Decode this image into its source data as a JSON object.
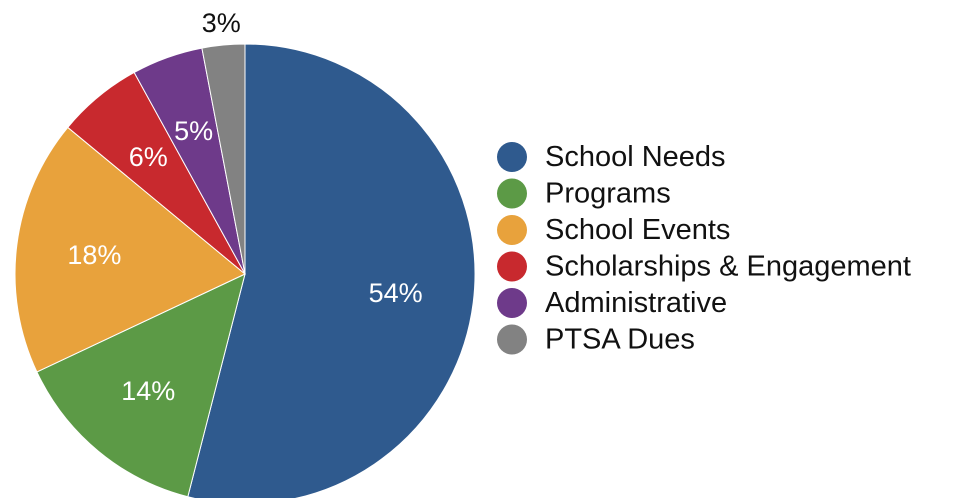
{
  "chart_data": {
    "type": "pie",
    "title": "",
    "start_angle_deg": 0,
    "direction": "clockwise",
    "legend_position": "right",
    "slices": [
      {
        "label": "School Needs",
        "value": 54,
        "display": "54%",
        "color": "#2f5a8e"
      },
      {
        "label": "Programs",
        "value": 14,
        "display": "14%",
        "color": "#5c9a46"
      },
      {
        "label": "School Events",
        "value": 18,
        "display": "18%",
        "color": "#e8a23c"
      },
      {
        "label": "Scholarships & Engagement",
        "value": 6,
        "display": "6%",
        "color": "#c8292e"
      },
      {
        "label": "Administrative",
        "value": 5,
        "display": "5%",
        "color": "#6e3a8a"
      },
      {
        "label": "PTSA Dues",
        "value": 3,
        "display": "3%",
        "color": "#828282"
      }
    ]
  }
}
